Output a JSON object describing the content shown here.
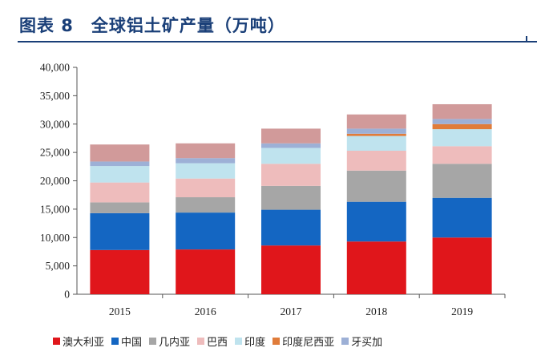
{
  "title": "图表 8　全球铝土矿产量（万吨）",
  "chart_data": {
    "type": "bar",
    "stacked": true,
    "categories": [
      "2015",
      "2016",
      "2017",
      "2018",
      "2019"
    ],
    "ylim": [
      0,
      40000
    ],
    "yticks": [
      0,
      5000,
      10000,
      15000,
      20000,
      25000,
      30000,
      35000,
      40000
    ],
    "ytick_labels": [
      "0",
      "5,000",
      "10,000",
      "15,000",
      "20,000",
      "25,000",
      "30,000",
      "35,000",
      "40,000"
    ],
    "grid": false,
    "legend_position": "bottom",
    "series": [
      {
        "name": "澳大利亚",
        "color": "#e0161b",
        "values": [
          7800,
          7900,
          8600,
          9300,
          10000
        ]
      },
      {
        "name": "中国",
        "color": "#1466c2",
        "values": [
          6500,
          6500,
          6300,
          7000,
          7000
        ]
      },
      {
        "name": "几内亚",
        "color": "#a6a6a6",
        "values": [
          1900,
          2700,
          4200,
          5500,
          6000
        ]
      },
      {
        "name": "巴西",
        "color": "#eebcbc",
        "values": [
          3500,
          3300,
          3900,
          3500,
          3100
        ]
      },
      {
        "name": "印度",
        "color": "#bfe3ee",
        "values": [
          2900,
          2700,
          2800,
          2600,
          3000
        ]
      },
      {
        "name": "印度尼西亚",
        "color": "#e07c3a",
        "values": [
          0,
          0,
          0,
          400,
          900
        ]
      },
      {
        "name": "牙买加",
        "color": "#9db0d6",
        "values": [
          800,
          900,
          800,
          900,
          900
        ]
      },
      {
        "name": "",
        "color": "#d19a9a",
        "values": [
          3000,
          2600,
          2600,
          2500,
          2600
        ]
      }
    ]
  }
}
